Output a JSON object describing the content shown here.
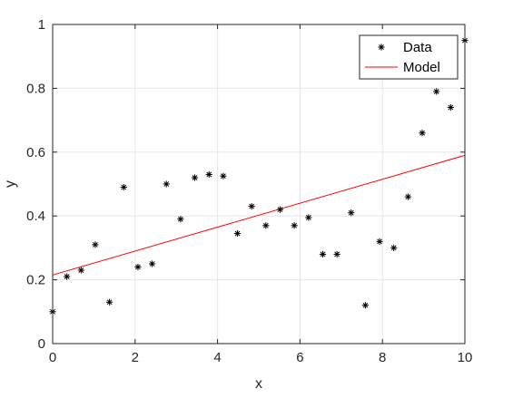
{
  "chart_data": {
    "type": "scatter",
    "title": "",
    "xlabel": "x",
    "ylabel": "y",
    "xlim": [
      0,
      10
    ],
    "ylim": [
      0,
      1
    ],
    "xticks": [
      "0",
      "2",
      "4",
      "6",
      "8",
      "10"
    ],
    "yticks": [
      "0",
      "0.2",
      "0.4",
      "0.6",
      "0.8",
      "1"
    ],
    "grid": true,
    "legend_position": "top-right",
    "series": [
      {
        "name": "Data",
        "kind": "scatter",
        "marker": "asterisk",
        "color": "#000000",
        "x": [
          0,
          0.345,
          0.69,
          1.034,
          1.379,
          1.724,
          2.069,
          2.414,
          2.759,
          3.103,
          3.448,
          3.793,
          4.138,
          4.483,
          4.828,
          5.172,
          5.517,
          5.862,
          6.207,
          6.552,
          6.897,
          7.241,
          7.586,
          7.931,
          8.276,
          8.621,
          8.966,
          9.31,
          9.655,
          10
        ],
        "y": [
          0.1,
          0.21,
          0.23,
          0.31,
          0.13,
          0.49,
          0.24,
          0.25,
          0.5,
          0.39,
          0.52,
          0.53,
          0.525,
          0.345,
          0.43,
          0.37,
          0.42,
          0.37,
          0.395,
          0.28,
          0.28,
          0.41,
          0.12,
          0.32,
          0.3,
          0.46,
          0.66,
          0.79,
          0.74,
          0.95
        ]
      },
      {
        "name": "Model",
        "kind": "line",
        "color": "#ff0000",
        "x": [
          0,
          10
        ],
        "y": [
          0.215,
          0.59
        ]
      }
    ]
  }
}
